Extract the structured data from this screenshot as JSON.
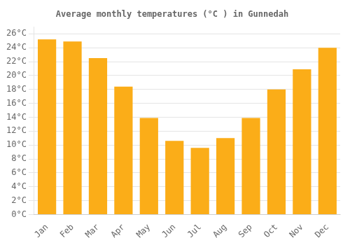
{
  "chart_data": {
    "type": "bar",
    "title": "Average monthly temperatures (°C ) in Gunnedah",
    "categories": [
      "Jan",
      "Feb",
      "Mar",
      "Apr",
      "May",
      "Jun",
      "Jul",
      "Aug",
      "Sep",
      "Oct",
      "Nov",
      "Dec"
    ],
    "values": [
      25.2,
      24.9,
      22.5,
      18.4,
      13.9,
      10.6,
      9.6,
      11.0,
      13.9,
      18.0,
      20.9,
      24.0
    ],
    "color": "#FBAD18",
    "ylim": [
      0,
      27
    ],
    "yticks": [
      {
        "value": 0,
        "label": "0°C"
      },
      {
        "value": 2,
        "label": "2°C"
      },
      {
        "value": 4,
        "label": "4°C"
      },
      {
        "value": 6,
        "label": "6°C"
      },
      {
        "value": 8,
        "label": "8°C"
      },
      {
        "value": 10,
        "label": "10°C"
      },
      {
        "value": 12,
        "label": "12°C"
      },
      {
        "value": 14,
        "label": "14°C"
      },
      {
        "value": 16,
        "label": "16°C"
      },
      {
        "value": 18,
        "label": "18°C"
      },
      {
        "value": 20,
        "label": "20°C"
      },
      {
        "value": 22,
        "label": "22°C"
      },
      {
        "value": 24,
        "label": "24°C"
      },
      {
        "value": 26,
        "label": "26°C"
      }
    ],
    "grid": true
  }
}
